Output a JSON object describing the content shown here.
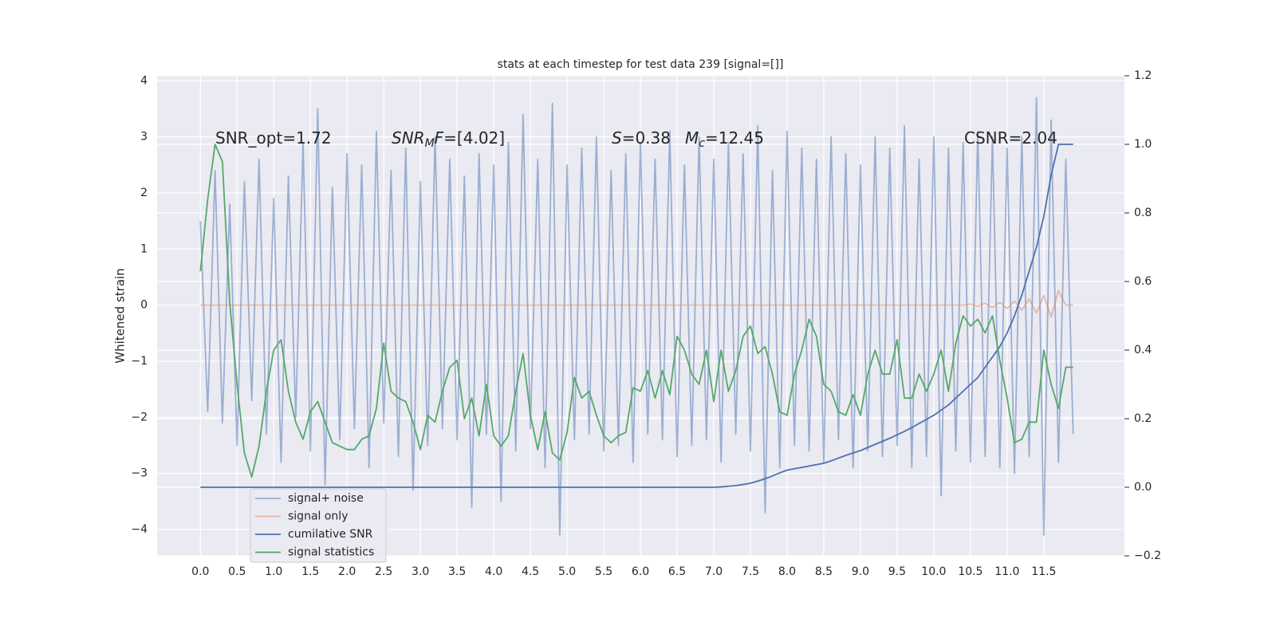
{
  "chart_data": {
    "type": "line",
    "title": "stats at each timestep for test data 239 [signal=[]]",
    "ylabel": "Whitened strain",
    "x": [
      0.0,
      0.1,
      0.2,
      0.3,
      0.4,
      0.5,
      0.6,
      0.7,
      0.8,
      0.9,
      1.0,
      1.1,
      1.2,
      1.3,
      1.4,
      1.5,
      1.6,
      1.7,
      1.8,
      1.9,
      2.0,
      2.1,
      2.2,
      2.3,
      2.4,
      2.5,
      2.6,
      2.7,
      2.8,
      2.9,
      3.0,
      3.1,
      3.2,
      3.3,
      3.4,
      3.5,
      3.6,
      3.7,
      3.8,
      3.9,
      4.0,
      4.1,
      4.2,
      4.3,
      4.4,
      4.5,
      4.6,
      4.7,
      4.8,
      4.9,
      5.0,
      5.1,
      5.2,
      5.3,
      5.4,
      5.5,
      5.6,
      5.7,
      5.8,
      5.9,
      6.0,
      6.1,
      6.2,
      6.3,
      6.4,
      6.5,
      6.6,
      6.7,
      6.8,
      6.9,
      7.0,
      7.1,
      7.2,
      7.3,
      7.4,
      7.5,
      7.6,
      7.7,
      7.8,
      7.9,
      8.0,
      8.1,
      8.2,
      8.3,
      8.4,
      8.5,
      8.6,
      8.7,
      8.8,
      8.9,
      9.0,
      9.1,
      9.2,
      9.3,
      9.4,
      9.5,
      9.6,
      9.7,
      9.8,
      9.9,
      10.0,
      10.1,
      10.2,
      10.3,
      10.4,
      10.5,
      10.6,
      10.7,
      10.8,
      10.9,
      11.0,
      11.1,
      11.2,
      11.3,
      11.4,
      11.5,
      11.6,
      11.7,
      11.8,
      11.9
    ],
    "series": [
      {
        "name": "signal+ noise",
        "color": "#4c72b0",
        "alpha": 0.5,
        "axis": "y",
        "values": [
          1.5,
          -1.9,
          2.4,
          -2.1,
          1.8,
          -2.5,
          2.2,
          -1.7,
          2.6,
          -2.3,
          1.9,
          -2.8,
          2.3,
          -2.0,
          2.9,
          -2.6,
          3.5,
          -3.2,
          2.1,
          -2.4,
          2.7,
          -2.2,
          2.5,
          -2.9,
          3.1,
          -2.1,
          2.4,
          -2.7,
          2.8,
          -3.3,
          2.2,
          -2.5,
          3.0,
          -2.2,
          2.6,
          -2.4,
          2.3,
          -3.6,
          2.7,
          -2.3,
          2.5,
          -3.5,
          2.9,
          -2.6,
          3.4,
          -2.2,
          2.6,
          -2.9,
          3.6,
          -4.1,
          2.5,
          -2.4,
          2.8,
          -2.3,
          3.0,
          -2.6,
          2.4,
          -2.5,
          2.7,
          -2.8,
          2.9,
          -2.3,
          2.6,
          -2.4,
          3.1,
          -2.7,
          2.5,
          -2.5,
          3.0,
          -2.4,
          2.6,
          -2.8,
          2.9,
          -2.3,
          2.7,
          -2.6,
          3.2,
          -3.7,
          2.4,
          -2.9,
          3.1,
          -2.5,
          2.8,
          -2.6,
          2.6,
          -2.8,
          3.0,
          -2.4,
          2.7,
          -2.9,
          2.5,
          -2.6,
          3.0,
          -2.7,
          2.8,
          -2.5,
          3.2,
          -2.9,
          2.6,
          -2.7,
          3.0,
          -3.4,
          2.8,
          -2.6,
          2.9,
          -2.8,
          3.1,
          -2.7,
          3.0,
          -2.9,
          2.8,
          -3.0,
          3.0,
          -2.7,
          3.7,
          -4.1,
          3.3,
          -2.8,
          2.6,
          -2.3
        ]
      },
      {
        "name": "signal only",
        "color": "#dd8452",
        "alpha": 0.5,
        "axis": "y",
        "values": [
          0,
          0,
          0,
          0,
          0,
          0,
          0,
          0,
          0,
          0,
          0,
          0,
          0,
          0,
          0,
          0,
          0,
          0,
          0,
          0,
          0,
          0,
          0,
          0,
          0,
          0,
          0,
          0,
          0,
          0,
          0,
          0,
          0,
          0,
          0,
          0,
          0,
          0,
          0,
          0,
          0,
          0,
          0,
          0,
          0,
          0,
          0,
          0,
          0,
          0,
          0,
          0,
          0,
          0,
          0,
          0,
          0,
          0,
          0,
          0,
          0,
          0,
          0,
          0,
          0,
          0,
          0,
          0,
          0,
          0,
          0,
          0,
          0,
          0,
          0,
          0,
          0,
          0,
          0,
          0,
          0,
          0,
          0,
          0,
          0,
          0,
          0,
          0,
          0,
          0,
          0,
          0,
          0,
          0,
          0,
          0,
          0,
          0,
          0,
          0,
          0,
          0,
          0,
          0,
          0,
          0.02,
          -0.02,
          0.03,
          -0.04,
          0.05,
          -0.06,
          0.07,
          -0.09,
          0.11,
          -0.14,
          0.17,
          -0.21,
          0.26,
          0,
          0
        ]
      },
      {
        "name": "cumilative SNR",
        "color": "#4c72b0",
        "alpha": 1,
        "axis": "y2",
        "values": [
          0,
          0,
          0,
          0,
          0,
          0,
          0,
          0,
          0,
          0,
          0,
          0,
          0,
          0,
          0,
          0,
          0,
          0,
          0,
          0,
          0,
          0,
          0,
          0,
          0,
          0,
          0,
          0,
          0,
          0,
          0,
          0,
          0,
          0,
          0,
          0,
          0,
          0,
          0,
          0,
          0,
          0,
          0,
          0,
          0,
          0,
          0,
          0,
          0,
          0,
          0,
          0,
          0,
          0,
          0,
          0,
          0,
          0,
          0,
          0,
          0,
          0,
          0,
          0,
          0,
          0,
          0,
          0,
          0,
          0,
          0,
          0.001,
          0.003,
          0.005,
          0.008,
          0.012,
          0.018,
          0.025,
          0.033,
          0.042,
          0.05,
          0.054,
          0.058,
          0.062,
          0.066,
          0.07,
          0.077,
          0.085,
          0.093,
          0.1,
          0.107,
          0.116,
          0.125,
          0.134,
          0.143,
          0.153,
          0.163,
          0.174,
          0.186,
          0.198,
          0.21,
          0.225,
          0.24,
          0.26,
          0.28,
          0.3,
          0.32,
          0.35,
          0.38,
          0.41,
          0.45,
          0.5,
          0.56,
          0.63,
          0.7,
          0.79,
          0.91,
          1.0,
          1.0,
          1.0
        ]
      },
      {
        "name": "signal statistics",
        "color": "#55a868",
        "alpha": 1,
        "axis": "y2",
        "values": [
          0.63,
          0.84,
          1.0,
          0.95,
          0.54,
          0.3,
          0.1,
          0.03,
          0.12,
          0.28,
          0.4,
          0.43,
          0.28,
          0.19,
          0.14,
          0.22,
          0.25,
          0.19,
          0.13,
          0.12,
          0.11,
          0.11,
          0.14,
          0.15,
          0.23,
          0.42,
          0.28,
          0.26,
          0.25,
          0.19,
          0.11,
          0.21,
          0.19,
          0.28,
          0.35,
          0.37,
          0.2,
          0.26,
          0.15,
          0.3,
          0.15,
          0.12,
          0.15,
          0.28,
          0.39,
          0.21,
          0.11,
          0.22,
          0.1,
          0.08,
          0.16,
          0.32,
          0.26,
          0.28,
          0.21,
          0.15,
          0.13,
          0.15,
          0.16,
          0.29,
          0.28,
          0.34,
          0.26,
          0.34,
          0.27,
          0.44,
          0.4,
          0.33,
          0.3,
          0.4,
          0.25,
          0.4,
          0.28,
          0.34,
          0.44,
          0.47,
          0.39,
          0.41,
          0.33,
          0.22,
          0.21,
          0.33,
          0.4,
          0.49,
          0.44,
          0.3,
          0.28,
          0.22,
          0.21,
          0.27,
          0.21,
          0.33,
          0.4,
          0.33,
          0.33,
          0.43,
          0.26,
          0.26,
          0.33,
          0.28,
          0.33,
          0.4,
          0.28,
          0.42,
          0.5,
          0.47,
          0.49,
          0.45,
          0.5,
          0.37,
          0.26,
          0.13,
          0.14,
          0.19,
          0.19,
          0.4,
          0.3,
          0.23,
          0.35,
          0.35
        ]
      }
    ],
    "xlim": [
      -0.59,
      12.6
    ],
    "xticks": [
      {
        "value": 0,
        "label": "0.0"
      },
      0.5,
      {
        "value": 1,
        "label": "1.0"
      },
      1.5,
      {
        "value": 2,
        "label": "2.0"
      },
      2.5,
      {
        "value": 3,
        "label": "3.0"
      },
      3.5,
      {
        "value": 4,
        "label": "4.0"
      },
      4.5,
      {
        "value": 5,
        "label": "5.0"
      },
      5.5,
      {
        "value": 6,
        "label": "6.0"
      },
      6.5,
      {
        "value": 7,
        "label": "7.0"
      },
      7.5,
      {
        "value": 8,
        "label": "8.0"
      },
      8.5,
      {
        "value": 9,
        "label": "9.0"
      },
      9.5,
      {
        "value": 10,
        "label": "10.0"
      },
      10.5,
      {
        "value": 11,
        "label": "11.0"
      },
      11.5
    ],
    "ylim": [
      -4.47,
      4.09
    ],
    "yticks": [
      {
        "value": -4,
        "label": "−4"
      },
      {
        "value": -3,
        "label": "−3"
      },
      {
        "value": -2,
        "label": "−2"
      },
      {
        "value": -1,
        "label": "−1"
      },
      0,
      1,
      2,
      3,
      4
    ],
    "y2lim": [
      -0.2,
      1.2
    ],
    "y2ticks": [
      {
        "value": -0.2,
        "label": "−0.2"
      },
      {
        "value": 0,
        "label": "0.0"
      },
      0.2,
      0.4,
      0.6,
      0.8,
      {
        "value": 1,
        "label": "1.0"
      },
      1.2
    ],
    "grid": true,
    "legend": "lower left",
    "annotations": [
      [
        "SNR_opt=1.72"
      ],
      [
        "SNR",
        "M",
        "F",
        "=[4.02]"
      ],
      [
        "S",
        "=0.38"
      ],
      [
        "M",
        "c",
        "=12.45"
      ],
      [
        "CSNR=2.04"
      ]
    ]
  }
}
